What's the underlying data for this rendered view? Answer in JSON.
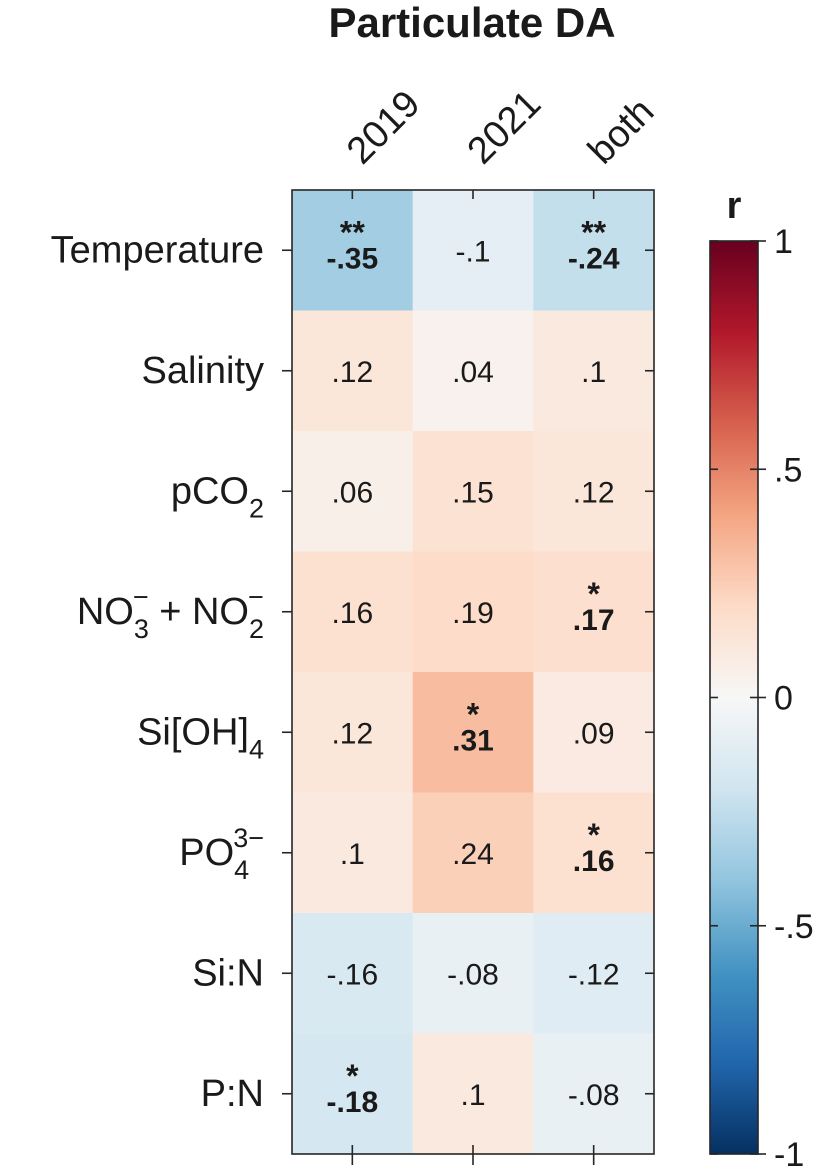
{
  "chart_data": {
    "type": "heatmap",
    "title": "Particulate DA",
    "columns": [
      "2019",
      "2021",
      "both"
    ],
    "rows": [
      {
        "key": "temperature",
        "label": [
          {
            "t": "Temperature"
          }
        ]
      },
      {
        "key": "salinity",
        "label": [
          {
            "t": "Salinity"
          }
        ]
      },
      {
        "key": "pco2",
        "label": [
          {
            "t": "pCO"
          },
          {
            "t": "2",
            "sub": true
          }
        ]
      },
      {
        "key": "no3-no2",
        "label": [
          {
            "t": "NO"
          },
          {
            "t": "3",
            "sub": true
          },
          {
            "t": "−",
            "sup": true
          },
          {
            "t": " + NO"
          },
          {
            "t": "2",
            "sub": true
          },
          {
            "t": "−",
            "sup": true
          }
        ]
      },
      {
        "key": "sioh4",
        "label": [
          {
            "t": "Si[OH]"
          },
          {
            "t": "4",
            "sub": true
          }
        ]
      },
      {
        "key": "po4",
        "label": [
          {
            "t": "PO"
          },
          {
            "t": "4",
            "sub": true
          },
          {
            "t": "3−",
            "sup": true
          }
        ]
      },
      {
        "key": "si-n",
        "label": [
          {
            "t": "Si:N"
          }
        ]
      },
      {
        "key": "p-n",
        "label": [
          {
            "t": "P:N"
          }
        ]
      }
    ],
    "values": [
      [
        -0.35,
        -0.1,
        -0.24
      ],
      [
        0.12,
        0.04,
        0.1
      ],
      [
        0.06,
        0.15,
        0.12
      ],
      [
        0.16,
        0.19,
        0.17
      ],
      [
        0.12,
        0.31,
        0.09
      ],
      [
        0.1,
        0.24,
        0.16
      ],
      [
        -0.16,
        -0.08,
        -0.12
      ],
      [
        -0.18,
        0.1,
        -0.08
      ]
    ],
    "value_labels": [
      [
        "-.35",
        "-.1",
        "-.24"
      ],
      [
        ".12",
        ".04",
        ".1"
      ],
      [
        ".06",
        ".15",
        ".12"
      ],
      [
        ".16",
        ".19",
        ".17"
      ],
      [
        ".12",
        ".31",
        ".09"
      ],
      [
        ".1",
        ".24",
        ".16"
      ],
      [
        "-.16",
        "-.08",
        "-.12"
      ],
      [
        "-.18",
        ".1",
        "-.08"
      ]
    ],
    "significance": [
      [
        "**",
        "",
        "**"
      ],
      [
        "",
        "",
        ""
      ],
      [
        "",
        "",
        ""
      ],
      [
        "",
        "",
        "*"
      ],
      [
        "",
        "*",
        ""
      ],
      [
        "",
        "",
        "*"
      ],
      [
        "",
        "",
        ""
      ],
      [
        "*",
        "",
        ""
      ]
    ],
    "colorbar": {
      "label": "r",
      "range": [
        -1,
        1
      ],
      "ticks": [
        1,
        0.5,
        0,
        -0.5,
        -1
      ],
      "tick_labels": [
        "1",
        ".5",
        "0",
        "-.5",
        "-1"
      ],
      "colormap": [
        "#053061",
        "#2166ac",
        "#4393c3",
        "#92c5de",
        "#d1e5f0",
        "#f7f7f7",
        "#fddbc7",
        "#f4a582",
        "#d6604d",
        "#b2182b",
        "#67001f"
      ]
    },
    "grid": false
  }
}
